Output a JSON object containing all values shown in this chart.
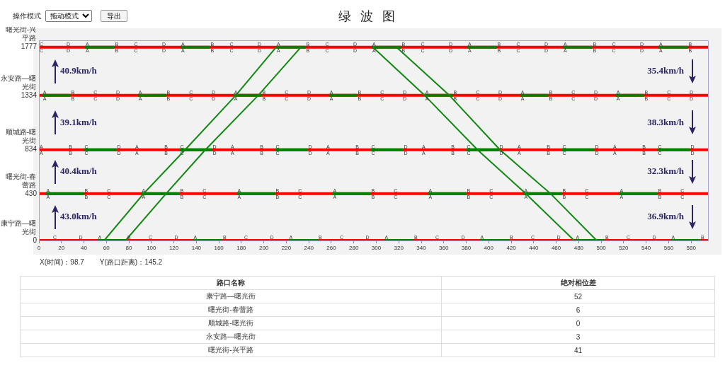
{
  "chart_data": [
    {
      "type": "line",
      "title": "绿 波 图",
      "xlim": [
        0,
        595
      ],
      "xticks": [
        0,
        20,
        40,
        60,
        80,
        100,
        120,
        140,
        160,
        180,
        200,
        220,
        240,
        260,
        280,
        300,
        320,
        340,
        360,
        380,
        400,
        420,
        440,
        460,
        480,
        500,
        520,
        540,
        560,
        580
      ],
      "ylim": [
        0,
        1840
      ],
      "yticks": [
        0,
        430,
        834,
        1334,
        1777
      ],
      "series": [
        {
          "color": "#ff0000",
          "x": [
            0,
            595
          ],
          "values": [
            0,
            0
          ]
        },
        {
          "color": "#ff0000",
          "x": [
            0,
            595
          ],
          "values": [
            430,
            430
          ]
        },
        {
          "color": "#ff0000",
          "x": [
            0,
            595
          ],
          "values": [
            834,
            834
          ]
        },
        {
          "color": "#ff0000",
          "x": [
            0,
            595
          ],
          "values": [
            1334,
            1334
          ]
        },
        {
          "color": "#ff0000",
          "x": [
            0,
            595
          ],
          "values": [
            1777,
            1777
          ]
        },
        {
          "color": "#008000",
          "x": [
            52,
            78,
            79,
            137,
            163,
            164,
            222,
            248,
            249,
            307,
            333,
            334,
            392,
            418,
            419,
            477,
            503,
            504,
            562,
            588
          ],
          "values": [
            0,
            0,
            null,
            0,
            0,
            null,
            0,
            0,
            null,
            0,
            0,
            null,
            0,
            0,
            null,
            0,
            0,
            null,
            0,
            0
          ]
        },
        {
          "color": "#008000",
          "x": [
            6,
            40,
            41,
            91,
            125,
            126,
            176,
            210,
            211,
            261,
            295,
            296,
            346,
            380,
            381,
            431,
            465,
            466,
            516,
            550
          ],
          "values": [
            430,
            430,
            null,
            430,
            430,
            null,
            430,
            430,
            null,
            430,
            430,
            null,
            430,
            430,
            null,
            430,
            430,
            null,
            430,
            430
          ]
        },
        {
          "color": "#008000",
          "x": [
            40,
            69,
            70,
            125,
            154,
            155,
            210,
            239,
            240,
            295,
            324,
            325,
            380,
            409,
            410,
            465,
            494,
            495,
            550,
            579
          ],
          "values": [
            834,
            834,
            null,
            834,
            834,
            null,
            834,
            834,
            null,
            834,
            834,
            null,
            834,
            834,
            null,
            834,
            834,
            null,
            834,
            834
          ]
        },
        {
          "color": "#008000",
          "x": [
            3,
            28,
            29,
            88,
            113,
            114,
            173,
            198,
            199,
            258,
            283,
            284,
            343,
            368,
            369,
            428,
            453,
            454,
            513,
            538
          ],
          "values": [
            1334,
            1334,
            null,
            1334,
            1334,
            null,
            1334,
            1334,
            null,
            1334,
            1334,
            null,
            1334,
            1334,
            null,
            1334,
            1334,
            null,
            1334,
            1334
          ]
        },
        {
          "color": "#008000",
          "x": [
            41,
            67,
            68,
            126,
            152,
            153,
            211,
            237,
            238,
            296,
            322,
            323,
            381,
            407,
            408,
            466,
            492,
            493,
            551,
            577
          ],
          "values": [
            1777,
            1777,
            null,
            1777,
            1777,
            null,
            1777,
            1777,
            null,
            1777,
            1777,
            null,
            1777,
            1777,
            null,
            1777,
            1777,
            null,
            1777,
            1777
          ]
        },
        {
          "color": "#118811",
          "x": [
            58,
            93,
            130,
            175,
            211
          ],
          "values": [
            0,
            430,
            834,
            1334,
            1777
          ]
        },
        {
          "color": "#118811",
          "x": [
            77,
            113,
            148,
            195,
            233
          ],
          "values": [
            0,
            430,
            834,
            1334,
            1777
          ]
        },
        {
          "color": "#118811",
          "x": [
            297,
            343,
            390,
            433,
            476
          ],
          "values": [
            1777,
            1334,
            834,
            430,
            0
          ]
        },
        {
          "color": "#118811",
          "x": [
            318,
            365,
            410,
            455,
            496
          ],
          "values": [
            1777,
            1334,
            834,
            430,
            0
          ]
        }
      ],
      "annotations": [
        "操作模式",
        "拖动模式",
        "导出",
        "X(时间)：98.7",
        "Y(路口距离)：145.2",
        "40.9km/h",
        "39.1km/h",
        "40.4km/h",
        "43.0km/h",
        "35.4km/h",
        "38.3km/h",
        "32.3km/h",
        "36.9km/h",
        "曙光街-兴平路",
        "永安路—曙光街",
        "顺城路-曙光街",
        "曙光街-春蕾路",
        "康宁路—曙光街",
        {
          "text": "C",
          "x": 0,
          "y": 1777
        },
        {
          "text": "D",
          "x": 24,
          "y": 1777
        },
        {
          "text": "A",
          "x": 41,
          "y": 1777
        },
        {
          "text": "B",
          "x": 67,
          "y": 1777
        },
        {
          "text": "C",
          "x": 84,
          "y": 1777
        },
        {
          "text": "D",
          "x": 109,
          "y": 1777
        },
        {
          "text": "A",
          "x": 126,
          "y": 1777
        },
        {
          "text": "B",
          "x": 152,
          "y": 1777
        },
        {
          "text": "C",
          "x": 169,
          "y": 1777
        },
        {
          "text": "D",
          "x": 194,
          "y": 1777
        },
        {
          "text": "A",
          "x": 211,
          "y": 1777
        },
        {
          "text": "B",
          "x": 237,
          "y": 1777
        },
        {
          "text": "C",
          "x": 254,
          "y": 1777
        },
        {
          "text": "D",
          "x": 279,
          "y": 1777
        },
        {
          "text": "A",
          "x": 296,
          "y": 1777
        },
        {
          "text": "B",
          "x": 322,
          "y": 1777
        },
        {
          "text": "C",
          "x": 339,
          "y": 1777
        },
        {
          "text": "D",
          "x": 364,
          "y": 1777
        },
        {
          "text": "A",
          "x": 381,
          "y": 1777
        },
        {
          "text": "B",
          "x": 407,
          "y": 1777
        },
        {
          "text": "C",
          "x": 424,
          "y": 1777
        },
        {
          "text": "D",
          "x": 449,
          "y": 1777
        },
        {
          "text": "A",
          "x": 466,
          "y": 1777
        },
        {
          "text": "B",
          "x": 492,
          "y": 1777
        },
        {
          "text": "C",
          "x": 509,
          "y": 1777
        },
        {
          "text": "D",
          "x": 534,
          "y": 1777
        },
        {
          "text": "A",
          "x": 551,
          "y": 1777
        },
        {
          "text": "B",
          "x": 577,
          "y": 1777
        },
        {
          "text": "A",
          "x": 3,
          "y": 1334
        },
        {
          "text": "B",
          "x": 28,
          "y": 1334
        },
        {
          "text": "C",
          "x": 48,
          "y": 1334
        },
        {
          "text": "D",
          "x": 68,
          "y": 1334
        },
        {
          "text": "A",
          "x": 88,
          "y": 1334
        },
        {
          "text": "B",
          "x": 113,
          "y": 1334
        },
        {
          "text": "C",
          "x": 133,
          "y": 1334
        },
        {
          "text": "D",
          "x": 153,
          "y": 1334
        },
        {
          "text": "A",
          "x": 173,
          "y": 1334
        },
        {
          "text": "B",
          "x": 198,
          "y": 1334
        },
        {
          "text": "C",
          "x": 218,
          "y": 1334
        },
        {
          "text": "D",
          "x": 238,
          "y": 1334
        },
        {
          "text": "A",
          "x": 258,
          "y": 1334
        },
        {
          "text": "B",
          "x": 283,
          "y": 1334
        },
        {
          "text": "C",
          "x": 303,
          "y": 1334
        },
        {
          "text": "D",
          "x": 323,
          "y": 1334
        },
        {
          "text": "A",
          "x": 343,
          "y": 1334
        },
        {
          "text": "B",
          "x": 368,
          "y": 1334
        },
        {
          "text": "C",
          "x": 388,
          "y": 1334
        },
        {
          "text": "D",
          "x": 408,
          "y": 1334
        },
        {
          "text": "A",
          "x": 428,
          "y": 1334
        },
        {
          "text": "B",
          "x": 453,
          "y": 1334
        },
        {
          "text": "C",
          "x": 473,
          "y": 1334
        },
        {
          "text": "D",
          "x": 493,
          "y": 1334
        },
        {
          "text": "A",
          "x": 513,
          "y": 1334
        },
        {
          "text": "B",
          "x": 538,
          "y": 1334
        },
        {
          "text": "C",
          "x": 558,
          "y": 1334
        },
        {
          "text": "D",
          "x": 578,
          "y": 1334
        },
        {
          "text": "A",
          "x": 0,
          "y": 834
        },
        {
          "text": "B",
          "x": 26,
          "y": 834
        },
        {
          "text": "C",
          "x": 40,
          "y": 834
        },
        {
          "text": "D",
          "x": 69,
          "y": 834
        },
        {
          "text": "A",
          "x": 85,
          "y": 834
        },
        {
          "text": "B",
          "x": 111,
          "y": 834
        },
        {
          "text": "C",
          "x": 125,
          "y": 834
        },
        {
          "text": "D",
          "x": 154,
          "y": 834
        },
        {
          "text": "A",
          "x": 170,
          "y": 834
        },
        {
          "text": "B",
          "x": 196,
          "y": 834
        },
        {
          "text": "C",
          "x": 210,
          "y": 834
        },
        {
          "text": "D",
          "x": 239,
          "y": 834
        },
        {
          "text": "A",
          "x": 255,
          "y": 834
        },
        {
          "text": "B",
          "x": 281,
          "y": 834
        },
        {
          "text": "C",
          "x": 295,
          "y": 834
        },
        {
          "text": "D",
          "x": 324,
          "y": 834
        },
        {
          "text": "A",
          "x": 340,
          "y": 834
        },
        {
          "text": "B",
          "x": 366,
          "y": 834
        },
        {
          "text": "C",
          "x": 380,
          "y": 834
        },
        {
          "text": "D",
          "x": 409,
          "y": 834
        },
        {
          "text": "A",
          "x": 425,
          "y": 834
        },
        {
          "text": "B",
          "x": 451,
          "y": 834
        },
        {
          "text": "C",
          "x": 465,
          "y": 834
        },
        {
          "text": "D",
          "x": 494,
          "y": 834
        },
        {
          "text": "A",
          "x": 510,
          "y": 834
        },
        {
          "text": "B",
          "x": 536,
          "y": 834
        },
        {
          "text": "C",
          "x": 550,
          "y": 834
        },
        {
          "text": "D",
          "x": 579,
          "y": 834
        },
        {
          "text": "A",
          "x": 6,
          "y": 430
        },
        {
          "text": "B",
          "x": 40,
          "y": 430
        },
        {
          "text": "C",
          "x": 60,
          "y": 430
        },
        {
          "text": "A",
          "x": 91,
          "y": 430
        },
        {
          "text": "B",
          "x": 125,
          "y": 430
        },
        {
          "text": "C",
          "x": 145,
          "y": 430
        },
        {
          "text": "A",
          "x": 176,
          "y": 430
        },
        {
          "text": "B",
          "x": 210,
          "y": 430
        },
        {
          "text": "C",
          "x": 230,
          "y": 430
        },
        {
          "text": "A",
          "x": 261,
          "y": 430
        },
        {
          "text": "B",
          "x": 295,
          "y": 430
        },
        {
          "text": "C",
          "x": 315,
          "y": 430
        },
        {
          "text": "A",
          "x": 346,
          "y": 430
        },
        {
          "text": "B",
          "x": 380,
          "y": 430
        },
        {
          "text": "C",
          "x": 400,
          "y": 430
        },
        {
          "text": "A",
          "x": 431,
          "y": 430
        },
        {
          "text": "B",
          "x": 465,
          "y": 430
        },
        {
          "text": "C",
          "x": 485,
          "y": 430
        },
        {
          "text": "A",
          "x": 516,
          "y": 430
        },
        {
          "text": "B",
          "x": 550,
          "y": 430
        },
        {
          "text": "C",
          "x": 570,
          "y": 430
        },
        {
          "text": "C",
          "x": 12,
          "y": 0
        },
        {
          "text": "D",
          "x": 35,
          "y": 0
        },
        {
          "text": "A",
          "x": 52,
          "y": 0
        },
        {
          "text": "B",
          "x": 78,
          "y": 0
        },
        {
          "text": "C",
          "x": 97,
          "y": 0
        },
        {
          "text": "D",
          "x": 120,
          "y": 0
        },
        {
          "text": "A",
          "x": 137,
          "y": 0
        },
        {
          "text": "B",
          "x": 163,
          "y": 0
        },
        {
          "text": "C",
          "x": 182,
          "y": 0
        },
        {
          "text": "D",
          "x": 205,
          "y": 0
        },
        {
          "text": "A",
          "x": 222,
          "y": 0
        },
        {
          "text": "B",
          "x": 248,
          "y": 0
        },
        {
          "text": "C",
          "x": 267,
          "y": 0
        },
        {
          "text": "D",
          "x": 290,
          "y": 0
        },
        {
          "text": "A",
          "x": 307,
          "y": 0
        },
        {
          "text": "B",
          "x": 333,
          "y": 0
        },
        {
          "text": "C",
          "x": 352,
          "y": 0
        },
        {
          "text": "D",
          "x": 375,
          "y": 0
        },
        {
          "text": "A",
          "x": 392,
          "y": 0
        },
        {
          "text": "B",
          "x": 418,
          "y": 0
        },
        {
          "text": "C",
          "x": 437,
          "y": 0
        },
        {
          "text": "D",
          "x": 460,
          "y": 0
        },
        {
          "text": "A",
          "x": 477,
          "y": 0
        },
        {
          "text": "B",
          "x": 503,
          "y": 0
        },
        {
          "text": "C",
          "x": 522,
          "y": 0
        },
        {
          "text": "D",
          "x": 545,
          "y": 0
        },
        {
          "text": "A",
          "x": 562,
          "y": 0
        },
        {
          "text": "B",
          "x": 588,
          "y": 0
        }
      ]
    },
    {
      "type": "other",
      "xlabel": "路口名称",
      "ylabel": "绝对相位差",
      "categories": [
        "康宁路—曙光街",
        "曙光街-春蕾路",
        "顺城路-曙光街",
        "永安路—曙光街",
        "曙光街-兴平路"
      ],
      "values": [
        52,
        6,
        0,
        3,
        41
      ],
      "data_labels": true
    }
  ]
}
